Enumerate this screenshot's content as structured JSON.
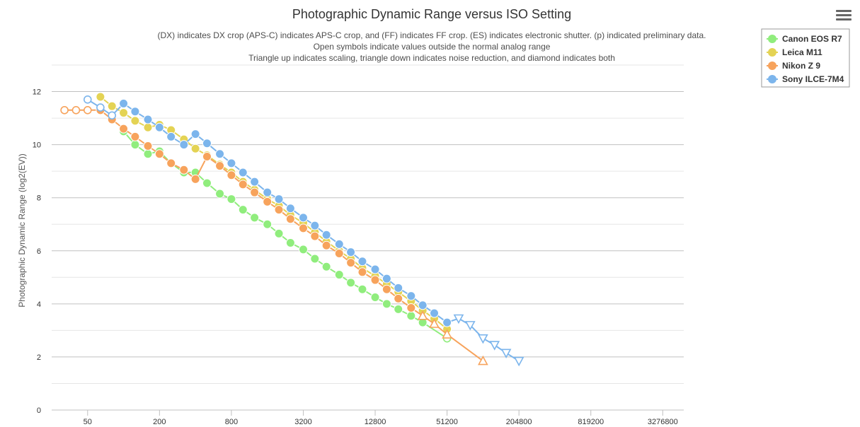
{
  "chart_data": {
    "type": "line",
    "title": "Photographic Dynamic Range versus ISO Setting",
    "subtitle": [
      "(DX) indicates DX crop (APS-C) indicates APS-C crop, and (FF) indicates FF crop. (ES) indicates electronic shutter. (p) indicated preliminary data.",
      "Open symbols indicate values outside the normal analog range",
      "Triangle up indicates scaling, triangle down indicates noise reduction, and diamond indicates both"
    ],
    "xlabel": "",
    "ylabel": "Photographic Dynamic Range (log2(EV))",
    "x_scale": "log2",
    "xlim": [
      25,
      4915200
    ],
    "ylim": [
      0,
      13
    ],
    "x_ticks": [
      50,
      200,
      800,
      3200,
      12800,
      51200,
      204800,
      819200,
      3276800
    ],
    "x_tick_labels": [
      "50",
      "200",
      "800",
      "3200",
      "12800",
      "51200",
      "204800",
      "819200",
      "3276800"
    ],
    "y_ticks": [
      0,
      2,
      4,
      6,
      8,
      10,
      12
    ],
    "y_tick_labels": [
      "0",
      "2",
      "4",
      "6",
      "8",
      "10",
      "12"
    ],
    "legend_position": "top-right",
    "series": [
      {
        "name": "Canon EOS R7",
        "color": "#90ed7d",
        "points": [
          [
            100,
            10.5,
            "circle"
          ],
          [
            125,
            10.0,
            "circle"
          ],
          [
            160,
            9.65,
            "circle"
          ],
          [
            200,
            9.75,
            "circle"
          ],
          [
            250,
            9.3,
            "circle"
          ],
          [
            320,
            8.95,
            "circle"
          ],
          [
            400,
            8.95,
            "circle"
          ],
          [
            500,
            8.55,
            "circle"
          ],
          [
            640,
            8.15,
            "circle"
          ],
          [
            800,
            7.95,
            "circle"
          ],
          [
            1000,
            7.55,
            "circle"
          ],
          [
            1250,
            7.25,
            "circle"
          ],
          [
            1600,
            7.0,
            "circle"
          ],
          [
            2000,
            6.65,
            "circle"
          ],
          [
            2500,
            6.3,
            "circle"
          ],
          [
            3200,
            6.05,
            "circle"
          ],
          [
            4000,
            5.7,
            "circle"
          ],
          [
            5000,
            5.4,
            "circle"
          ],
          [
            6400,
            5.1,
            "circle"
          ],
          [
            8000,
            4.8,
            "circle"
          ],
          [
            10000,
            4.55,
            "circle"
          ],
          [
            12800,
            4.25,
            "circle"
          ],
          [
            16000,
            4.0,
            "circle"
          ],
          [
            20000,
            3.8,
            "circle"
          ],
          [
            25600,
            3.55,
            "circle"
          ],
          [
            32000,
            3.3,
            "circle"
          ],
          [
            51200,
            2.7,
            "circle-open"
          ]
        ]
      },
      {
        "name": "Leica M11",
        "color": "#e4d354",
        "points": [
          [
            64,
            11.8,
            "circle"
          ],
          [
            80,
            11.45,
            "circle"
          ],
          [
            100,
            11.2,
            "circle"
          ],
          [
            125,
            10.9,
            "circle"
          ],
          [
            160,
            10.65,
            "circle"
          ],
          [
            200,
            10.75,
            "circle"
          ],
          [
            250,
            10.55,
            "circle"
          ],
          [
            320,
            10.2,
            "circle"
          ],
          [
            400,
            9.85,
            "circle"
          ],
          [
            500,
            9.6,
            "circle"
          ],
          [
            640,
            9.25,
            "circle"
          ],
          [
            800,
            8.95,
            "circle"
          ],
          [
            1000,
            8.6,
            "circle"
          ],
          [
            1250,
            8.3,
            "circle"
          ],
          [
            1600,
            7.95,
            "circle"
          ],
          [
            2000,
            7.7,
            "circle"
          ],
          [
            2500,
            7.35,
            "circle"
          ],
          [
            3200,
            7.05,
            "circle"
          ],
          [
            4000,
            6.7,
            "circle"
          ],
          [
            5000,
            6.35,
            "circle"
          ],
          [
            6400,
            6.0,
            "circle"
          ],
          [
            8000,
            5.7,
            "circle"
          ],
          [
            10000,
            5.35,
            "circle"
          ],
          [
            12800,
            5.05,
            "circle"
          ],
          [
            16000,
            4.75,
            "circle"
          ],
          [
            20000,
            4.45,
            "circle"
          ],
          [
            25600,
            4.1,
            "circle"
          ],
          [
            32000,
            3.75,
            "circle"
          ],
          [
            40000,
            3.45,
            "circle"
          ],
          [
            51200,
            3.05,
            "circle"
          ]
        ]
      },
      {
        "name": "Nikon Z 9",
        "color": "#f7a35c",
        "points": [
          [
            32,
            11.3,
            "circle-open"
          ],
          [
            40,
            11.3,
            "circle-open"
          ],
          [
            50,
            11.3,
            "circle-open"
          ],
          [
            64,
            11.3,
            "circle"
          ],
          [
            80,
            10.95,
            "circle"
          ],
          [
            100,
            10.6,
            "circle"
          ],
          [
            125,
            10.3,
            "circle"
          ],
          [
            160,
            9.95,
            "circle"
          ],
          [
            200,
            9.65,
            "circle"
          ],
          [
            250,
            9.3,
            "circle"
          ],
          [
            320,
            9.05,
            "circle"
          ],
          [
            400,
            8.7,
            "circle"
          ],
          [
            500,
            9.55,
            "circle"
          ],
          [
            640,
            9.2,
            "circle"
          ],
          [
            800,
            8.85,
            "circle"
          ],
          [
            1000,
            8.5,
            "circle"
          ],
          [
            1250,
            8.2,
            "circle"
          ],
          [
            1600,
            7.85,
            "circle"
          ],
          [
            2000,
            7.55,
            "circle"
          ],
          [
            2500,
            7.2,
            "circle"
          ],
          [
            3200,
            6.85,
            "circle"
          ],
          [
            4000,
            6.55,
            "circle"
          ],
          [
            5000,
            6.2,
            "circle"
          ],
          [
            6400,
            5.9,
            "circle"
          ],
          [
            8000,
            5.55,
            "circle"
          ],
          [
            10000,
            5.2,
            "circle"
          ],
          [
            12800,
            4.9,
            "circle"
          ],
          [
            16000,
            4.55,
            "circle"
          ],
          [
            20000,
            4.2,
            "circle"
          ],
          [
            25600,
            3.85,
            "circle"
          ],
          [
            32000,
            3.55,
            "triangle-up"
          ],
          [
            40000,
            3.25,
            "triangle-up"
          ],
          [
            51200,
            2.85,
            "triangle-up"
          ],
          [
            102400,
            1.85,
            "triangle-up"
          ]
        ]
      },
      {
        "name": "Sony ILCE-7M4",
        "color": "#7cb5ec",
        "points": [
          [
            50,
            11.7,
            "circle-open"
          ],
          [
            64,
            11.4,
            "circle-open"
          ],
          [
            80,
            11.1,
            "circle-open"
          ],
          [
            100,
            11.55,
            "circle"
          ],
          [
            125,
            11.25,
            "circle"
          ],
          [
            160,
            10.95,
            "circle"
          ],
          [
            200,
            10.65,
            "circle"
          ],
          [
            250,
            10.3,
            "circle"
          ],
          [
            320,
            10.0,
            "circle"
          ],
          [
            400,
            10.4,
            "circle"
          ],
          [
            500,
            10.05,
            "circle"
          ],
          [
            640,
            9.65,
            "circle"
          ],
          [
            800,
            9.3,
            "circle"
          ],
          [
            1000,
            8.95,
            "circle"
          ],
          [
            1250,
            8.6,
            "circle"
          ],
          [
            1600,
            8.2,
            "circle"
          ],
          [
            2000,
            7.95,
            "circle"
          ],
          [
            2500,
            7.6,
            "circle"
          ],
          [
            3200,
            7.25,
            "circle"
          ],
          [
            4000,
            6.95,
            "circle"
          ],
          [
            5000,
            6.6,
            "circle"
          ],
          [
            6400,
            6.25,
            "circle"
          ],
          [
            8000,
            5.95,
            "circle"
          ],
          [
            10000,
            5.6,
            "circle"
          ],
          [
            12800,
            5.3,
            "circle"
          ],
          [
            16000,
            4.95,
            "circle"
          ],
          [
            20000,
            4.6,
            "circle"
          ],
          [
            25600,
            4.3,
            "circle"
          ],
          [
            32000,
            3.95,
            "circle"
          ],
          [
            40000,
            3.65,
            "circle"
          ],
          [
            51200,
            3.3,
            "circle"
          ],
          [
            64000,
            3.45,
            "triangle-down"
          ],
          [
            80000,
            3.2,
            "triangle-down"
          ],
          [
            102400,
            2.7,
            "triangle-down"
          ],
          [
            128000,
            2.45,
            "triangle-down"
          ],
          [
            160000,
            2.15,
            "triangle-down"
          ],
          [
            204800,
            1.85,
            "triangle-down"
          ]
        ]
      }
    ]
  },
  "menu": {
    "icon": "hamburger-menu-icon"
  }
}
